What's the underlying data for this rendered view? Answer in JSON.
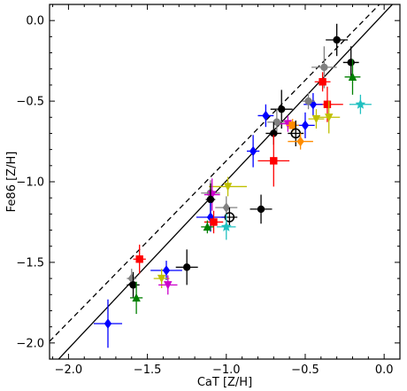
{
  "chart_data": {
    "type": "scatter",
    "title": "",
    "xlabel": "CaT [Z/H]",
    "ylabel": "Fe86 [Z/H]",
    "xlim": [
      -2.12,
      0.1
    ],
    "ylim": [
      -2.1,
      0.1
    ],
    "xticks": [
      -2.0,
      -1.5,
      -1.0,
      -0.5,
      0.0
    ],
    "xtick_labels": [
      "−2.0",
      "−1.5",
      "−1.0",
      "−0.5",
      "0.0"
    ],
    "yticks": [
      -2.0,
      -1.5,
      -1.0,
      -0.5,
      0.0
    ],
    "ytick_labels": [
      "−2.0",
      "−1.5",
      "−1.0",
      "−0.5",
      "0.0"
    ],
    "grid": false,
    "legend": "none",
    "reference_lines": [
      {
        "style": "solid",
        "color": "#000000",
        "x": [
          -2.12,
          0.1
        ],
        "y": [
          -2.16,
          0.15
        ]
      },
      {
        "style": "dashed",
        "color": "#000000",
        "x": [
          -2.12,
          0.1
        ],
        "y": [
          -1.99,
          0.23
        ]
      }
    ],
    "points": [
      {
        "x": -0.3,
        "y": -0.12,
        "xerr": 0.07,
        "yerr": 0.1,
        "marker": "circle",
        "color": "#000000"
      },
      {
        "x": -0.21,
        "y": -0.26,
        "xerr": 0.05,
        "yerr": 0.1,
        "marker": "circle",
        "color": "#000000"
      },
      {
        "x": -0.38,
        "y": -0.29,
        "xerr": 0.08,
        "yerr": 0.13,
        "marker": "circle",
        "color": "#808080"
      },
      {
        "x": -0.39,
        "y": -0.38,
        "xerr": 0.05,
        "yerr": 0.06,
        "marker": "square",
        "color": "#ff0000"
      },
      {
        "x": -0.2,
        "y": -0.35,
        "xerr": 0.05,
        "yerr": 0.11,
        "marker": "triangle-up",
        "color": "#008000"
      },
      {
        "x": -0.36,
        "y": -0.52,
        "xerr": 0.1,
        "yerr": 0.11,
        "marker": "square",
        "color": "#ff0000"
      },
      {
        "x": -0.45,
        "y": -0.52,
        "xerr": 0.06,
        "yerr": 0.07,
        "marker": "diamond",
        "color": "#0000ff"
      },
      {
        "x": -0.48,
        "y": -0.5,
        "xerr": 0.04,
        "yerr": 0.05,
        "marker": "circle",
        "color": "#808080"
      },
      {
        "x": -0.15,
        "y": -0.52,
        "xerr": 0.07,
        "yerr": 0.06,
        "marker": "star",
        "color": "#20c0c0"
      },
      {
        "x": -0.35,
        "y": -0.6,
        "xerr": 0.07,
        "yerr": 0.1,
        "marker": "triangle-down",
        "color": "#c0c000"
      },
      {
        "x": -0.43,
        "y": -0.61,
        "xerr": 0.05,
        "yerr": 0.06,
        "marker": "triangle-down",
        "color": "#c0c000"
      },
      {
        "x": -0.5,
        "y": -0.65,
        "xerr": 0.06,
        "yerr": 0.08,
        "marker": "diamond",
        "color": "#0000ff"
      },
      {
        "x": -0.65,
        "y": -0.55,
        "xerr": 0.07,
        "yerr": 0.12,
        "marker": "circle",
        "color": "#000000"
      },
      {
        "x": -0.75,
        "y": -0.59,
        "xerr": 0.05,
        "yerr": 0.07,
        "marker": "diamond",
        "color": "#0000ff"
      },
      {
        "x": -0.68,
        "y": -0.63,
        "xerr": 0.06,
        "yerr": 0.08,
        "marker": "circle",
        "color": "#808080"
      },
      {
        "x": -0.61,
        "y": -0.64,
        "xerr": 0.05,
        "yerr": 0.05,
        "marker": "triangle-down",
        "color": "#cc00cc"
      },
      {
        "x": -0.58,
        "y": -0.65,
        "xerr": 0.04,
        "yerr": 0.04,
        "marker": "square",
        "color": "#ff8c00"
      },
      {
        "x": -0.7,
        "y": -0.7,
        "xerr": 0.05,
        "yerr": 0.07,
        "marker": "circle",
        "color": "#000000"
      },
      {
        "x": -0.56,
        "y": -0.7,
        "xerr": 0.05,
        "yerr": 0.08,
        "marker": "circle-open",
        "color": "#000000"
      },
      {
        "x": -0.53,
        "y": -0.75,
        "xerr": 0.08,
        "yerr": 0.05,
        "marker": "diamond",
        "color": "#ff8c00"
      },
      {
        "x": -0.83,
        "y": -0.81,
        "xerr": 0.04,
        "yerr": 0.1,
        "marker": "diamond",
        "color": "#0000ff"
      },
      {
        "x": -0.7,
        "y": -0.87,
        "xerr": 0.1,
        "yerr": 0.16,
        "marker": "square",
        "color": "#ff0000"
      },
      {
        "x": -0.99,
        "y": -1.03,
        "xerr": 0.12,
        "yerr": 0.06,
        "marker": "triangle-down",
        "color": "#c0c000"
      },
      {
        "x": -1.1,
        "y": -1.07,
        "xerr": 0.06,
        "yerr": 0.08,
        "marker": "circle",
        "color": "#808080"
      },
      {
        "x": -1.09,
        "y": -1.08,
        "xerr": 0.05,
        "yerr": 0.1,
        "marker": "triangle-down",
        "color": "#cc00cc"
      },
      {
        "x": -1.1,
        "y": -1.11,
        "xerr": 0.03,
        "yerr": 0.1,
        "marker": "circle",
        "color": "#000000"
      },
      {
        "x": -1.0,
        "y": -1.16,
        "xerr": 0.07,
        "yerr": 0.07,
        "marker": "diamond",
        "color": "#808080"
      },
      {
        "x": -0.78,
        "y": -1.17,
        "xerr": 0.07,
        "yerr": 0.09,
        "marker": "circle",
        "color": "#000000"
      },
      {
        "x": -0.98,
        "y": -1.22,
        "xerr": 0.05,
        "yerr": 0.06,
        "marker": "circle-open",
        "color": "#000000"
      },
      {
        "x": -1.1,
        "y": -1.22,
        "xerr": 0.09,
        "yerr": 0.09,
        "marker": "diamond",
        "color": "#0000ff"
      },
      {
        "x": -1.08,
        "y": -1.25,
        "xerr": 0.06,
        "yerr": 0.07,
        "marker": "square",
        "color": "#ff0000"
      },
      {
        "x": -1.12,
        "y": -1.28,
        "xerr": 0.04,
        "yerr": 0.04,
        "marker": "triangle-up",
        "color": "#008000"
      },
      {
        "x": -1.0,
        "y": -1.28,
        "xerr": 0.06,
        "yerr": 0.08,
        "marker": "star",
        "color": "#20c0c0"
      },
      {
        "x": -1.55,
        "y": -1.48,
        "xerr": 0.04,
        "yerr": 0.09,
        "marker": "square",
        "color": "#ff0000"
      },
      {
        "x": -1.25,
        "y": -1.53,
        "xerr": 0.07,
        "yerr": 0.11,
        "marker": "circle",
        "color": "#000000"
      },
      {
        "x": -1.38,
        "y": -1.55,
        "xerr": 0.1,
        "yerr": 0.06,
        "marker": "diamond",
        "color": "#0000ff"
      },
      {
        "x": -1.41,
        "y": -1.6,
        "xerr": 0.05,
        "yerr": 0.06,
        "marker": "triangle-down",
        "color": "#c0c000"
      },
      {
        "x": -1.6,
        "y": -1.6,
        "xerr": 0.03,
        "yerr": 0.06,
        "marker": "diamond",
        "color": "#808080"
      },
      {
        "x": -1.59,
        "y": -1.64,
        "xerr": 0.04,
        "yerr": 0.08,
        "marker": "circle",
        "color": "#000000"
      },
      {
        "x": -1.37,
        "y": -1.64,
        "xerr": 0.06,
        "yerr": 0.06,
        "marker": "triangle-down",
        "color": "#cc00cc"
      },
      {
        "x": -1.57,
        "y": -1.72,
        "xerr": 0.04,
        "yerr": 0.1,
        "marker": "triangle-up",
        "color": "#008000"
      },
      {
        "x": -1.75,
        "y": -1.88,
        "xerr": 0.09,
        "yerr": 0.15,
        "marker": "diamond",
        "color": "#0000ff"
      }
    ]
  }
}
